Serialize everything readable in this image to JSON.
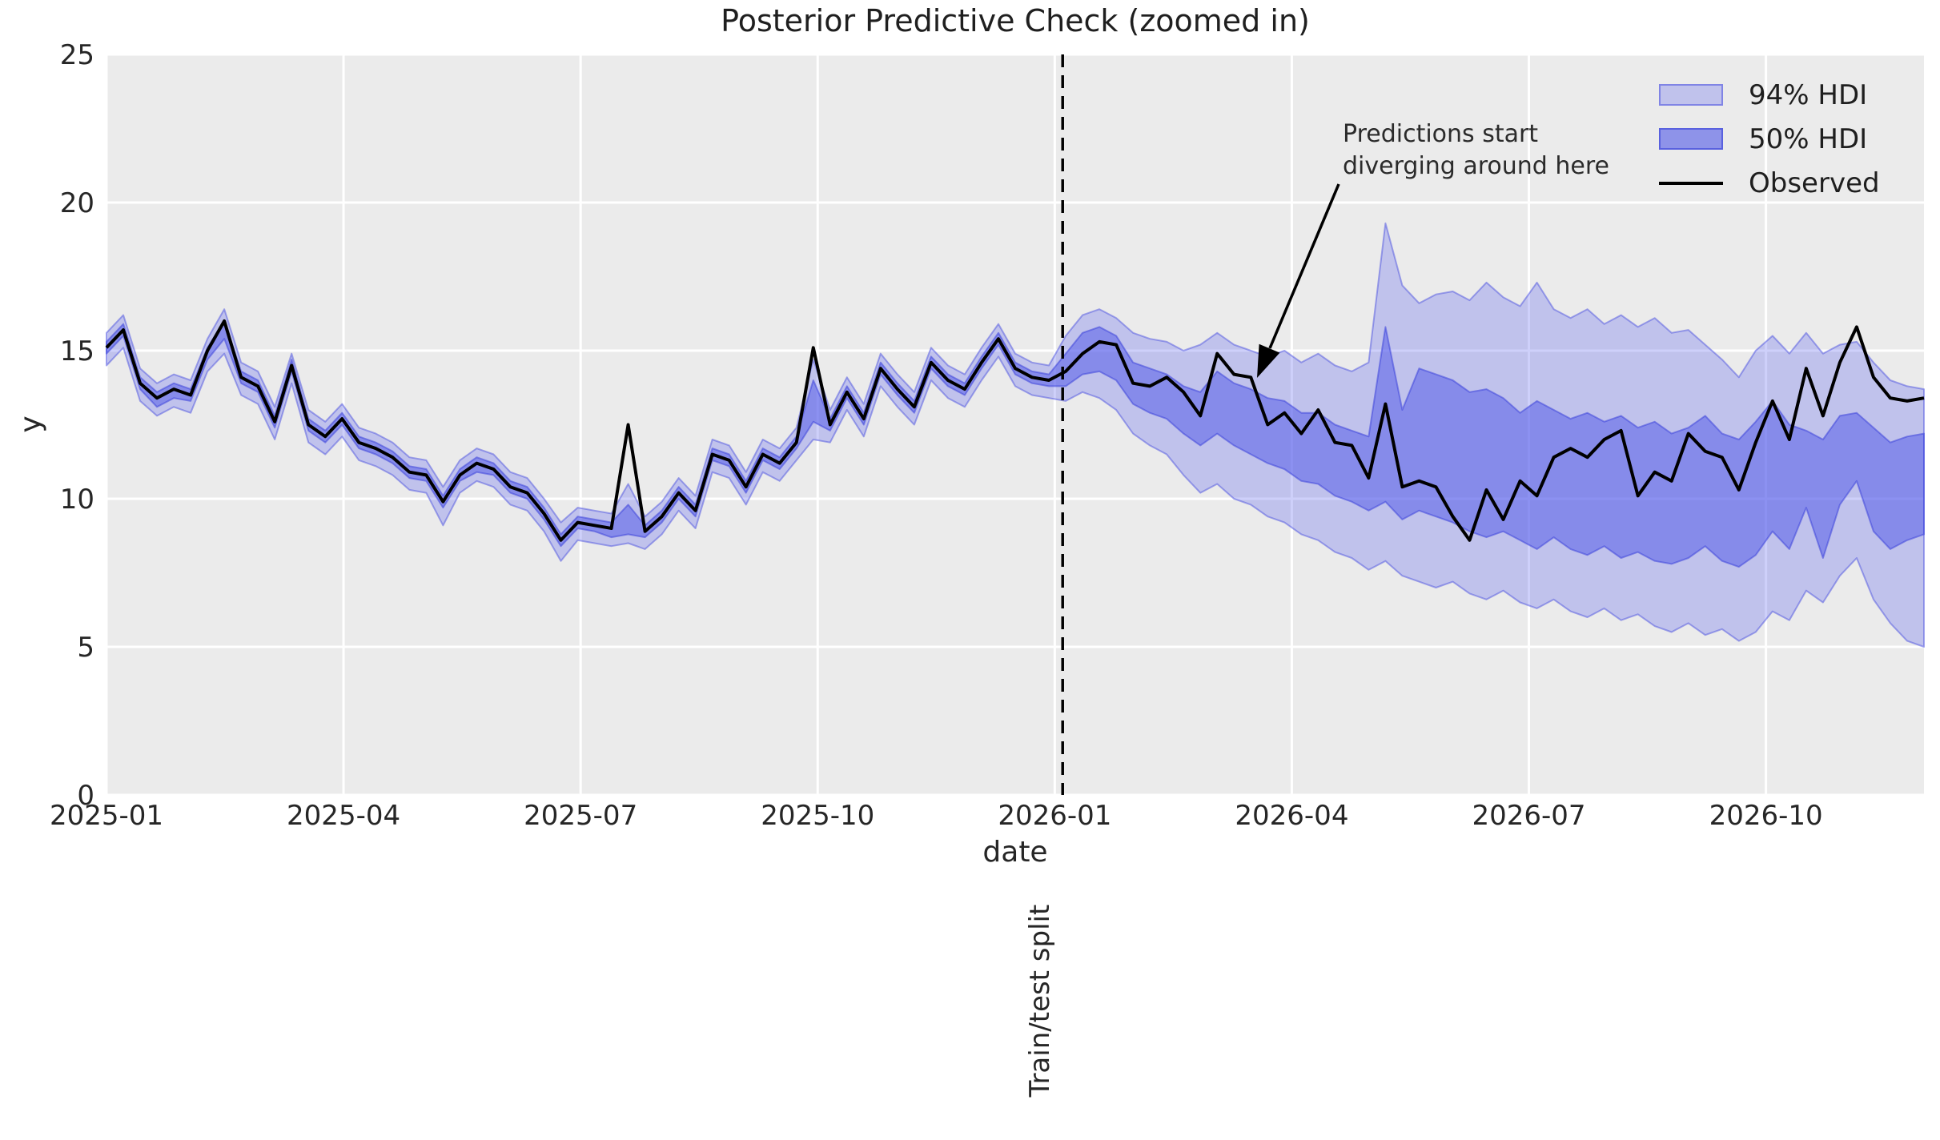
{
  "title": "Posterior Predictive Check (zoomed in)",
  "axes": {
    "xlabel": "date",
    "ylabel": "y"
  },
  "annotation": {
    "line1": "Predictions start",
    "line2": "diverging around here"
  },
  "split": {
    "label": "Train/test split",
    "month_offset": 12.1
  },
  "legend": {
    "hdi94": "94% HDI",
    "hdi50": "50% HDI",
    "observed": "Observed"
  },
  "colors": {
    "plot_background": "#ebebeb",
    "figure_background": "#ffffff",
    "grid": "#ffffff",
    "observed_line": "#000000",
    "hdi94_fill": "rgba(107,111,240,0.33)",
    "hdi94_edge": "rgba(75,82,224,0.50)",
    "hdi50_fill": "rgba(80,88,232,0.52)",
    "hdi50_edge": "rgba(62,70,218,0.55)",
    "split_line": "#000000",
    "text": "#262626"
  },
  "chart_data": {
    "type": "line",
    "title": "Posterior Predictive Check (zoomed in)",
    "xlabel": "date",
    "ylabel": "y",
    "grid": true,
    "legend_position": "upper right",
    "ylim": [
      0,
      25
    ],
    "y_ticks": [
      0,
      5,
      10,
      15,
      20,
      25
    ],
    "x_range_months": 23,
    "x_start": "2025-01",
    "x_end": "2026-12",
    "frequency": "weekly",
    "split_month_offset": 12.1,
    "x_ticks": [
      {
        "month_offset": 0,
        "label": "2025-01"
      },
      {
        "month_offset": 3,
        "label": "2025-04"
      },
      {
        "month_offset": 6,
        "label": "2025-07"
      },
      {
        "month_offset": 9,
        "label": "2025-10"
      },
      {
        "month_offset": 12,
        "label": "2026-01"
      },
      {
        "month_offset": 15,
        "label": "2026-04"
      },
      {
        "month_offset": 18,
        "label": "2026-07"
      },
      {
        "month_offset": 21,
        "label": "2026-10"
      }
    ],
    "series": {
      "observed": [
        15.1,
        15.7,
        13.9,
        13.4,
        13.7,
        13.5,
        15.0,
        16.0,
        14.1,
        13.8,
        12.6,
        14.5,
        12.5,
        12.1,
        12.7,
        11.9,
        11.7,
        11.4,
        10.9,
        10.8,
        9.9,
        10.8,
        11.2,
        11.0,
        10.4,
        10.2,
        9.5,
        8.6,
        9.2,
        9.1,
        9.0,
        12.5,
        8.9,
        9.4,
        10.2,
        9.6,
        11.5,
        11.3,
        10.4,
        11.5,
        11.2,
        11.9,
        15.1,
        12.5,
        13.6,
        12.7,
        14.4,
        13.7,
        13.1,
        14.6,
        14.0,
        13.7,
        14.6,
        15.4,
        14.4,
        14.1,
        14.0,
        14.3,
        14.9,
        15.3,
        15.2,
        13.9,
        13.8,
        14.1,
        13.6,
        12.8,
        14.9,
        14.2,
        14.1,
        12.5,
        12.9,
        12.2,
        13.0,
        11.9,
        11.8,
        10.7,
        13.2,
        10.4,
        10.6,
        10.4,
        9.4,
        8.6,
        10.3,
        9.3,
        10.6,
        10.1,
        11.4,
        11.7,
        11.4,
        12.0,
        12.3,
        10.1,
        10.9,
        10.6,
        12.2,
        11.6,
        11.4,
        10.3,
        11.9,
        13.3,
        12.0,
        14.4,
        12.8,
        14.6,
        15.8,
        14.1,
        13.4,
        13.3,
        13.4
      ],
      "hdi94_upper": [
        15.6,
        16.2,
        14.4,
        13.9,
        14.2,
        14.0,
        15.4,
        16.4,
        14.6,
        14.3,
        13.1,
        14.9,
        13.0,
        12.6,
        13.2,
        12.4,
        12.2,
        11.9,
        11.4,
        11.3,
        10.4,
        11.3,
        11.7,
        11.5,
        10.9,
        10.7,
        10.0,
        9.2,
        9.7,
        9.6,
        9.5,
        10.5,
        9.4,
        9.9,
        10.7,
        10.1,
        12.0,
        11.8,
        10.9,
        12.0,
        11.7,
        12.4,
        14.7,
        13.0,
        14.1,
        13.2,
        14.9,
        14.2,
        13.6,
        15.1,
        14.5,
        14.2,
        15.1,
        15.9,
        14.9,
        14.6,
        14.5,
        15.5,
        16.2,
        16.4,
        16.1,
        15.6,
        15.4,
        15.3,
        15.0,
        15.2,
        15.6,
        15.2,
        15.0,
        14.8,
        15.0,
        14.6,
        14.9,
        14.5,
        14.3,
        14.6,
        19.3,
        17.2,
        16.6,
        16.9,
        17.0,
        16.7,
        17.3,
        16.8,
        16.5,
        17.3,
        16.4,
        16.1,
        16.4,
        15.9,
        16.2,
        15.8,
        16.1,
        15.6,
        15.7,
        15.2,
        14.7,
        14.1,
        15.0,
        15.5,
        14.9,
        15.6,
        14.9,
        15.2,
        15.3,
        14.6,
        14.0,
        13.8,
        13.7
      ],
      "hdi94_lower": [
        14.5,
        15.1,
        13.3,
        12.8,
        13.1,
        12.9,
        14.3,
        14.9,
        13.5,
        13.2,
        12.0,
        13.9,
        11.9,
        11.5,
        12.1,
        11.3,
        11.1,
        10.8,
        10.3,
        10.2,
        9.1,
        10.2,
        10.6,
        10.4,
        9.8,
        9.6,
        8.9,
        7.9,
        8.6,
        8.5,
        8.4,
        8.5,
        8.3,
        8.8,
        9.6,
        9.0,
        10.9,
        10.7,
        9.8,
        10.9,
        10.6,
        11.3,
        12.0,
        11.9,
        13.0,
        12.1,
        13.8,
        13.1,
        12.5,
        14.0,
        13.4,
        13.1,
        14.0,
        14.8,
        13.8,
        13.5,
        13.4,
        13.3,
        13.6,
        13.4,
        13.0,
        12.2,
        11.8,
        11.5,
        10.8,
        10.2,
        10.5,
        10.0,
        9.8,
        9.4,
        9.2,
        8.8,
        8.6,
        8.2,
        8.0,
        7.6,
        7.9,
        7.4,
        7.2,
        7.0,
        7.2,
        6.8,
        6.6,
        6.9,
        6.5,
        6.3,
        6.6,
        6.2,
        6.0,
        6.3,
        5.9,
        6.1,
        5.7,
        5.5,
        5.8,
        5.4,
        5.6,
        5.2,
        5.5,
        6.2,
        5.9,
        6.9,
        6.5,
        7.4,
        8.0,
        6.6,
        5.8,
        5.2,
        5.0
      ],
      "hdi50_upper": [
        15.3,
        15.9,
        14.1,
        13.6,
        13.9,
        13.7,
        15.1,
        16.0,
        14.3,
        14.0,
        12.8,
        14.7,
        12.7,
        12.3,
        12.9,
        12.1,
        11.9,
        11.6,
        11.1,
        11.0,
        10.1,
        11.0,
        11.4,
        11.2,
        10.6,
        10.4,
        9.7,
        8.8,
        9.4,
        9.3,
        9.2,
        9.8,
        9.1,
        9.6,
        10.4,
        9.8,
        11.7,
        11.5,
        10.6,
        11.7,
        11.4,
        12.1,
        14.0,
        12.7,
        13.8,
        12.9,
        14.6,
        13.9,
        13.3,
        14.8,
        14.2,
        13.9,
        14.8,
        15.6,
        14.6,
        14.3,
        14.2,
        14.9,
        15.6,
        15.8,
        15.5,
        14.6,
        14.4,
        14.2,
        13.8,
        13.6,
        14.3,
        13.9,
        13.7,
        13.4,
        13.3,
        12.9,
        12.9,
        12.5,
        12.3,
        12.1,
        15.8,
        13.0,
        14.4,
        14.2,
        14.0,
        13.6,
        13.7,
        13.4,
        12.9,
        13.3,
        13.0,
        12.7,
        12.9,
        12.6,
        12.8,
        12.4,
        12.6,
        12.2,
        12.4,
        12.8,
        12.2,
        12.0,
        12.6,
        13.3,
        12.5,
        12.3,
        12.0,
        12.8,
        12.9,
        12.4,
        11.9,
        12.1,
        12.2
      ],
      "hdi50_lower": [
        14.9,
        15.5,
        13.7,
        13.1,
        13.4,
        13.3,
        14.7,
        15.4,
        13.9,
        13.6,
        12.4,
        14.3,
        12.3,
        11.9,
        12.5,
        11.7,
        11.5,
        11.2,
        10.7,
        10.6,
        9.7,
        10.6,
        10.9,
        10.8,
        10.2,
        10.0,
        9.3,
        8.4,
        9.0,
        8.9,
        8.7,
        8.8,
        8.7,
        9.2,
        10.0,
        9.4,
        11.3,
        11.1,
        10.2,
        11.3,
        11.0,
        11.7,
        12.6,
        12.3,
        13.4,
        12.5,
        14.2,
        13.5,
        12.9,
        14.4,
        13.8,
        13.5,
        14.4,
        15.2,
        14.2,
        13.9,
        13.8,
        13.8,
        14.2,
        14.3,
        14.0,
        13.2,
        12.9,
        12.7,
        12.2,
        11.8,
        12.2,
        11.8,
        11.5,
        11.2,
        11.0,
        10.6,
        10.5,
        10.1,
        9.9,
        9.6,
        9.9,
        9.3,
        9.6,
        9.4,
        9.2,
        8.9,
        8.7,
        8.9,
        8.6,
        8.3,
        8.7,
        8.3,
        8.1,
        8.4,
        8.0,
        8.2,
        7.9,
        7.8,
        8.0,
        8.4,
        7.9,
        7.7,
        8.1,
        8.9,
        8.3,
        9.7,
        8.0,
        9.8,
        10.6,
        8.9,
        8.3,
        8.6,
        8.8
      ]
    }
  }
}
